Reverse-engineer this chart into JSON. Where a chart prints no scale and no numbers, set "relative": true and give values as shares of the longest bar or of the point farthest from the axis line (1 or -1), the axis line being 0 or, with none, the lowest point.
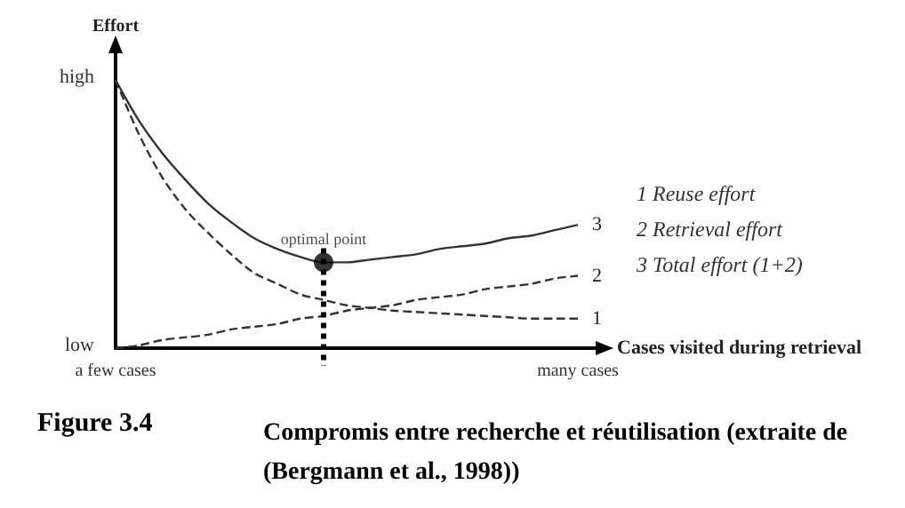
{
  "chart_data": {
    "type": "line",
    "relative": true,
    "title": "Figure 3.4",
    "subtitle": "Compromis entre recherche et réutilisation (extraite de (Bergmann et al., 1998))",
    "xlabel": "Cases visited during retrieval",
    "ylabel": "Effort",
    "categories": [
      "a few cases",
      null,
      null,
      null,
      null,
      null,
      null,
      null,
      null,
      null,
      null,
      null,
      null,
      null,
      null,
      null,
      null,
      null,
      null,
      null,
      "many cases"
    ],
    "grid": false,
    "legend": false,
    "marker": "none",
    "series": [
      {
        "name": "1",
        "color": "#333333",
        "line_style": "dashed",
        "values": [
          1.0,
          0.8,
          0.64,
          0.52,
          0.43,
          0.35,
          0.28,
          0.24,
          0.2,
          0.18,
          0.16,
          0.15,
          0.14,
          0.135,
          0.13,
          0.125,
          0.12,
          0.115,
          0.11,
          0.11,
          0.11
        ]
      },
      {
        "name": "2",
        "color": "#333333",
        "line_style": "dashed",
        "values": [
          0,
          0.01,
          0.03,
          0.04,
          0.05,
          0.07,
          0.08,
          0.09,
          0.11,
          0.12,
          0.14,
          0.15,
          0.16,
          0.18,
          0.19,
          0.2,
          0.22,
          0.23,
          0.24,
          0.26,
          0.27
        ]
      },
      {
        "name": "3",
        "color": "#333333",
        "line_style": "solid",
        "values": [
          1.0,
          0.85,
          0.73,
          0.63,
          0.54,
          0.47,
          0.41,
          0.37,
          0.34,
          0.32,
          0.32,
          0.33,
          0.34,
          0.35,
          0.37,
          0.38,
          0.39,
          0.41,
          0.42,
          0.44,
          0.46
        ]
      },
      {
        "name": "optimal point",
        "type": "scatter",
        "marker": "circle",
        "color": "#000000",
        "values": [
          null,
          null,
          null,
          null,
          null,
          null,
          null,
          null,
          null,
          0.32,
          null,
          null,
          null,
          null,
          null,
          null,
          null,
          null,
          null,
          null,
          null
        ]
      }
    ],
    "annotations": [
      "high",
      "low",
      "1 Reuse effort",
      "2 Retrieval effort",
      "3 Total effort (1+2)"
    ]
  }
}
